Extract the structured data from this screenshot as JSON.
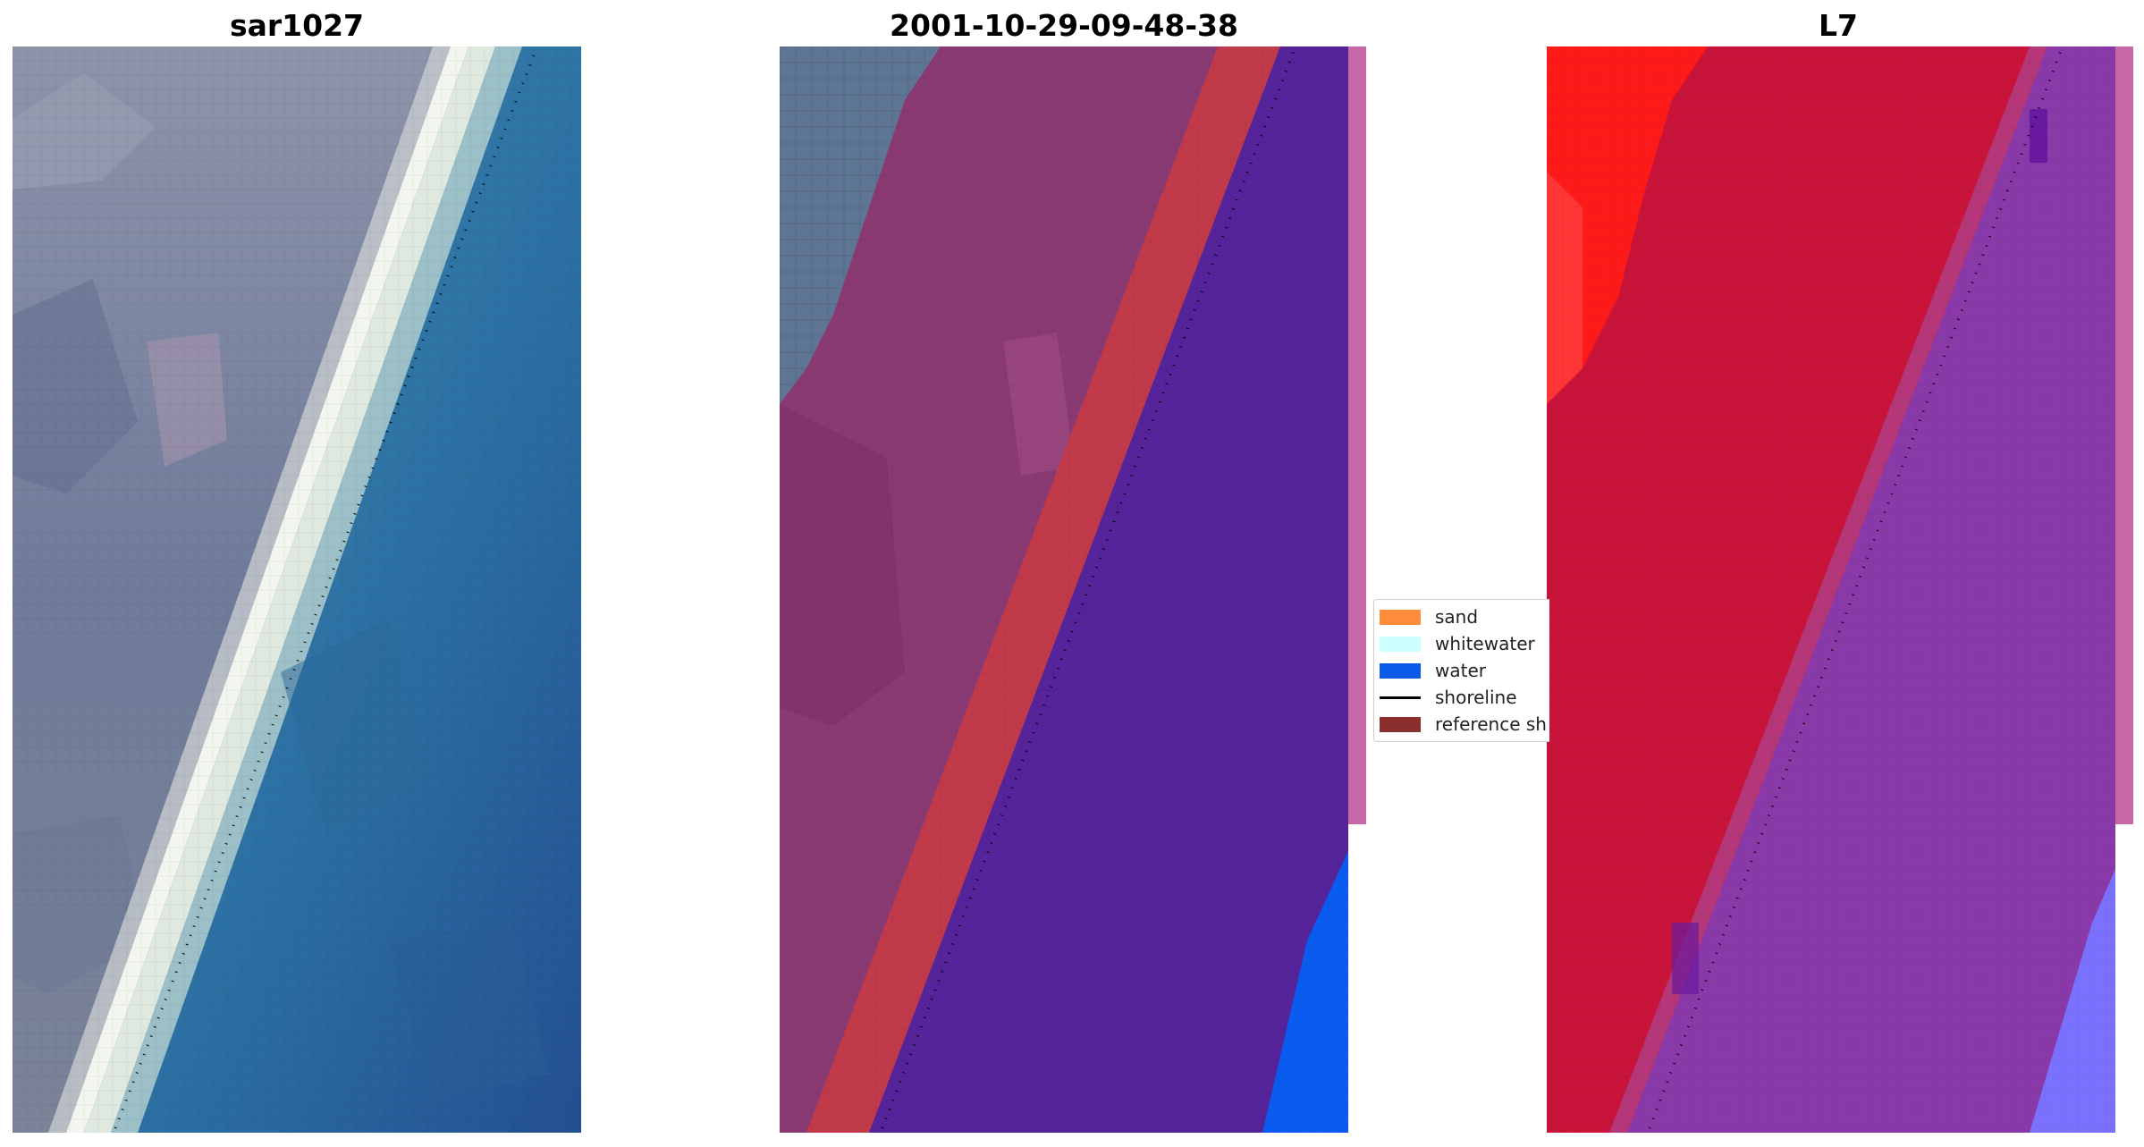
{
  "panels": [
    {
      "title": "sar1027"
    },
    {
      "title": "2001-10-29-09-48-38"
    },
    {
      "title": "L7"
    }
  ],
  "legend": {
    "items": [
      {
        "label": "sand",
        "kind": "patch",
        "color": "#ff8c3a"
      },
      {
        "label": "whitewater",
        "kind": "patch",
        "color": "#ccffff"
      },
      {
        "label": "water",
        "kind": "patch",
        "color": "#0a5be8"
      },
      {
        "label": "shoreline",
        "kind": "line",
        "color": "#000000"
      },
      {
        "label": "reference sh",
        "kind": "patch",
        "color": "#8b2e2e"
      }
    ]
  },
  "colors": {
    "rgb_land": "#6f7c9c",
    "rgb_beach": "#e8efe6",
    "rgb_water": "#2f74a6",
    "classified_land": "#8a3a72",
    "classified_sand": "#c13a4a",
    "classified_water": "#55239a",
    "classified_water_bright": "#0a5cf0",
    "classified_margin": "#c868a8",
    "l7_land": "#c8143a",
    "l7_land_bright": "#ff1a1a",
    "l7_water": "#8a3aa8",
    "l7_water_bright": "#7a72ff",
    "shoreline": "#000000"
  }
}
